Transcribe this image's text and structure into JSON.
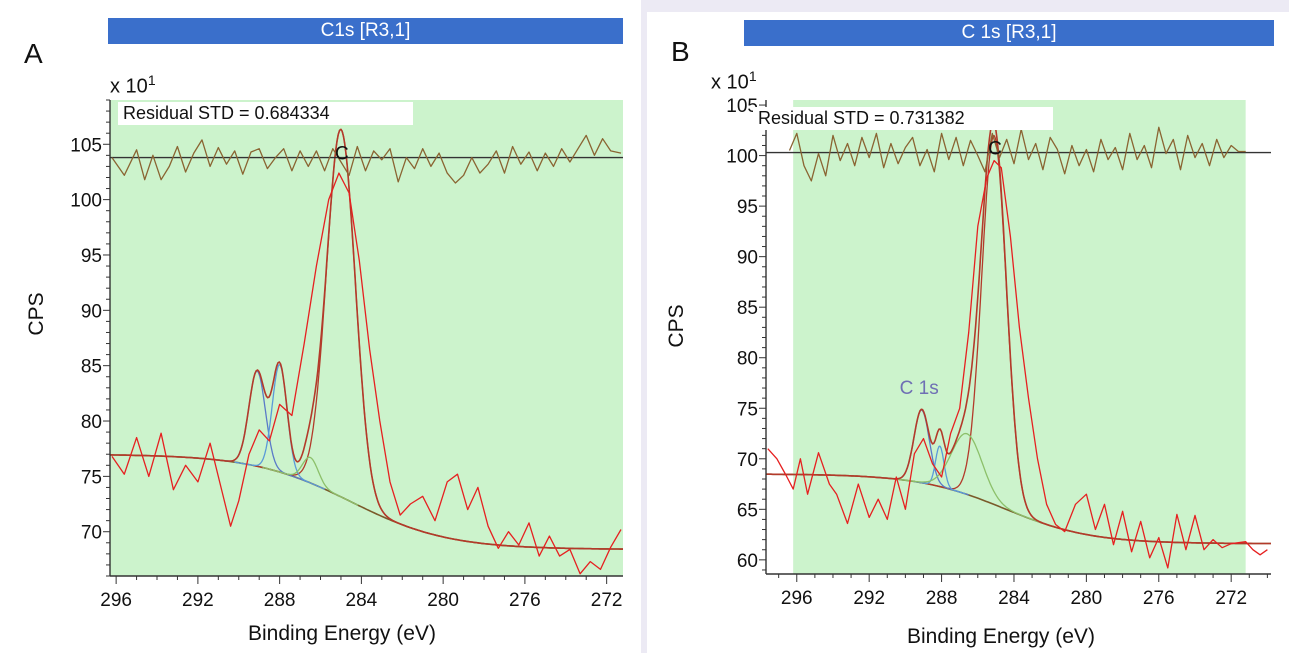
{
  "panels": {
    "a": {
      "letter": "A",
      "title": "C1s [R3,1]",
      "multiplier_base": "x 10",
      "multiplier_exp": "1",
      "residual": "Residual STD = 0.684334",
      "ylabel": "CPS",
      "xlabel": "Binding Energy (eV)"
    },
    "b": {
      "letter": "B",
      "title": "C 1s [R3,1]",
      "multiplier_base": "x 10",
      "multiplier_exp": "1",
      "residual": "Residual STD = 0.731382",
      "ylabel": "CPS",
      "xlabel": "Binding Energy (eV)",
      "peak_label": "C 1s"
    }
  },
  "colors": {
    "fill": "#ccf3cc",
    "data": "#e62020",
    "envelope": "#b33a2a",
    "background": "#7a5a2a",
    "residual": "#8a6432",
    "component1": "#5a7ac8",
    "component2": "#5a9ad8",
    "component3": "#8cc06a",
    "title_bar": "#3a6fcb"
  },
  "chart_data": [
    {
      "type": "line",
      "panel": "A",
      "title": "C1s [R3,1]",
      "xlabel": "Binding Energy (eV)",
      "ylabel": "CPS",
      "xlim": [
        296.3,
        271.2
      ],
      "ylim": [
        66,
        109
      ],
      "xticks": [
        296,
        292,
        288,
        284,
        280,
        276,
        272
      ],
      "yticks": [
        70,
        75,
        80,
        85,
        90,
        95,
        100,
        105
      ],
      "residual_baseline": 103.8,
      "residual_std": 0.684334,
      "background": {
        "start": 77,
        "end": 68.4,
        "center": 284.5
      },
      "components": [
        {
          "name": "",
          "center": 285.0,
          "height": 33.2,
          "fwhm": 1.65
        },
        {
          "name": "",
          "center": 289.1,
          "height": 8.6,
          "fwhm": 0.95
        },
        {
          "name": "",
          "center": 288.0,
          "height": 9.7,
          "fwhm": 0.85
        },
        {
          "name": "",
          "center": 286.5,
          "height": 2.3,
          "fwhm": 0.9
        }
      ],
      "raw_data": [
        [
          296.2,
          76.8
        ],
        [
          295.6,
          75.2
        ],
        [
          295.0,
          78.5
        ],
        [
          294.4,
          75.0
        ],
        [
          293.8,
          78.9
        ],
        [
          293.2,
          73.8
        ],
        [
          292.6,
          76.0
        ],
        [
          292.0,
          74.5
        ],
        [
          291.4,
          78.0
        ],
        [
          290.8,
          73.5
        ],
        [
          290.4,
          70.5
        ],
        [
          290.0,
          72.8
        ],
        [
          289.5,
          77.0
        ],
        [
          289.0,
          79.2
        ],
        [
          288.5,
          78.2
        ],
        [
          288.0,
          81.5
        ],
        [
          287.4,
          80.5
        ],
        [
          286.8,
          87.0
        ],
        [
          286.2,
          94.0
        ],
        [
          285.6,
          100.0
        ],
        [
          285.1,
          102.4
        ],
        [
          284.6,
          100.6
        ],
        [
          284.1,
          94.5
        ],
        [
          283.6,
          86.5
        ],
        [
          283.1,
          80.0
        ],
        [
          282.6,
          74.5
        ],
        [
          282.1,
          71.5
        ],
        [
          281.6,
          72.5
        ],
        [
          281.0,
          73.2
        ],
        [
          280.4,
          71.0
        ],
        [
          279.8,
          74.5
        ],
        [
          279.3,
          75.2
        ],
        [
          278.8,
          72.0
        ],
        [
          278.3,
          74.0
        ],
        [
          277.8,
          70.5
        ],
        [
          277.3,
          68.5
        ],
        [
          276.8,
          70.0
        ],
        [
          276.3,
          68.8
        ],
        [
          275.8,
          70.8
        ],
        [
          275.3,
          67.8
        ],
        [
          274.8,
          69.6
        ],
        [
          274.3,
          67.8
        ],
        [
          273.8,
          68.4
        ],
        [
          273.3,
          66.2
        ],
        [
          272.8,
          67.3
        ],
        [
          272.3,
          66.6
        ],
        [
          271.8,
          68.6
        ],
        [
          271.3,
          70.2
        ]
      ],
      "residual_curve": [
        [
          296.2,
          103.8
        ],
        [
          295.6,
          102.2
        ],
        [
          295.0,
          104.5
        ],
        [
          294.6,
          101.8
        ],
        [
          294.2,
          104.0
        ],
        [
          293.8,
          101.8
        ],
        [
          293.4,
          103.0
        ],
        [
          293.0,
          104.8
        ],
        [
          292.6,
          102.5
        ],
        [
          292.2,
          104.2
        ],
        [
          291.8,
          105.4
        ],
        [
          291.4,
          103.0
        ],
        [
          291.0,
          104.7
        ],
        [
          290.6,
          103.2
        ],
        [
          290.2,
          104.4
        ],
        [
          289.8,
          102.3
        ],
        [
          289.4,
          104.3
        ],
        [
          289.0,
          104.6
        ],
        [
          288.6,
          102.8
        ],
        [
          288.2,
          103.8
        ],
        [
          287.8,
          104.6
        ],
        [
          287.4,
          102.6
        ],
        [
          287.0,
          104.4
        ],
        [
          286.6,
          103.0
        ],
        [
          286.2,
          104.4
        ],
        [
          285.8,
          102.6
        ],
        [
          285.4,
          104.6
        ],
        [
          285.0,
          103.4
        ],
        [
          284.6,
          102.2
        ],
        [
          284.2,
          104.8
        ],
        [
          283.8,
          102.6
        ],
        [
          283.4,
          104.4
        ],
        [
          283.0,
          103.6
        ],
        [
          282.6,
          104.6
        ],
        [
          282.2,
          101.6
        ],
        [
          281.8,
          103.8
        ],
        [
          281.4,
          102.8
        ],
        [
          281.0,
          104.6
        ],
        [
          280.6,
          103.0
        ],
        [
          280.2,
          104.2
        ],
        [
          279.8,
          102.4
        ],
        [
          279.4,
          101.5
        ],
        [
          279.0,
          102.2
        ],
        [
          278.6,
          103.8
        ],
        [
          278.2,
          102.4
        ],
        [
          277.8,
          103.2
        ],
        [
          277.4,
          104.4
        ],
        [
          277.0,
          102.4
        ],
        [
          276.6,
          104.8
        ],
        [
          276.2,
          103.2
        ],
        [
          275.8,
          104.3
        ],
        [
          275.4,
          102.6
        ],
        [
          275.0,
          104.2
        ],
        [
          274.6,
          103.0
        ],
        [
          274.2,
          104.6
        ],
        [
          273.8,
          103.4
        ],
        [
          273.4,
          104.6
        ],
        [
          273.0,
          105.8
        ],
        [
          272.6,
          104.0
        ],
        [
          272.2,
          105.5
        ],
        [
          271.8,
          104.4
        ],
        [
          271.3,
          104.2
        ]
      ]
    },
    {
      "type": "line",
      "panel": "B",
      "title": "C 1s [R3,1]",
      "xlabel": "Binding Energy (eV)",
      "ylabel": "CPS",
      "xlim": [
        297.7,
        269.8
      ],
      "ylim": [
        58.6,
        105.5
      ],
      "xticks": [
        296,
        292,
        288,
        284,
        280,
        276,
        272
      ],
      "yticks": [
        60,
        65,
        70,
        75,
        80,
        85,
        90,
        95,
        100,
        105
      ],
      "shaded_range": [
        296.2,
        271.2
      ],
      "residual_baseline": 100.3,
      "residual_std": 0.731382,
      "background": {
        "start": 68.5,
        "end": 61.6,
        "center": 284.5
      },
      "components": [
        {
          "name": "C 1s",
          "center": 285.1,
          "height": 36.5,
          "fwhm": 1.6
        },
        {
          "name": "",
          "center": 289.1,
          "height": 7.2,
          "fwhm": 1.0
        },
        {
          "name": "",
          "center": 288.1,
          "height": 4.0,
          "fwhm": 0.55
        },
        {
          "name": "",
          "center": 286.6,
          "height": 6.0,
          "fwhm": 2.0
        }
      ],
      "raw_data": [
        [
          297.6,
          71.0
        ],
        [
          297.1,
          70.0
        ],
        [
          296.6,
          68.4
        ],
        [
          296.2,
          67.0
        ],
        [
          295.8,
          70.0
        ],
        [
          295.4,
          66.5
        ],
        [
          294.8,
          70.6
        ],
        [
          294.2,
          67.5
        ],
        [
          293.8,
          66.5
        ],
        [
          293.2,
          63.6
        ],
        [
          292.6,
          67.5
        ],
        [
          292.0,
          64.2
        ],
        [
          291.5,
          66.0
        ],
        [
          291.0,
          64.0
        ],
        [
          290.5,
          68.2
        ],
        [
          290.0,
          65.0
        ],
        [
          289.5,
          70.5
        ],
        [
          289.0,
          72.0
        ],
        [
          288.5,
          69.5
        ],
        [
          288.0,
          68.2
        ],
        [
          287.5,
          72.5
        ],
        [
          287.0,
          75.0
        ],
        [
          286.5,
          82.5
        ],
        [
          286.0,
          93.0
        ],
        [
          285.5,
          97.8
        ],
        [
          285.1,
          99.5
        ],
        [
          284.7,
          98.8
        ],
        [
          284.2,
          92.0
        ],
        [
          283.7,
          83.0
        ],
        [
          283.2,
          76.0
        ],
        [
          282.7,
          70.0
        ],
        [
          282.2,
          65.5
        ],
        [
          281.7,
          63.5
        ],
        [
          281.2,
          62.8
        ],
        [
          280.6,
          65.5
        ],
        [
          280.0,
          66.5
        ],
        [
          279.5,
          63.0
        ],
        [
          279.0,
          65.5
        ],
        [
          278.5,
          61.5
        ],
        [
          278.0,
          64.8
        ],
        [
          277.5,
          60.8
        ],
        [
          277.0,
          63.8
        ],
        [
          276.5,
          60.2
        ],
        [
          276.0,
          62.2
        ],
        [
          275.5,
          59.2
        ],
        [
          275.0,
          64.5
        ],
        [
          274.5,
          61.0
        ],
        [
          274.0,
          64.4
        ],
        [
          273.5,
          61.0
        ],
        [
          273.0,
          62.0
        ],
        [
          272.5,
          61.2
        ],
        [
          272.0,
          61.6
        ],
        [
          271.2,
          61.8
        ],
        [
          270.8,
          61.0
        ],
        [
          270.4,
          60.5
        ],
        [
          270.0,
          61.0
        ]
      ],
      "residual_curve": [
        [
          296.4,
          100.5
        ],
        [
          296.0,
          102.2
        ],
        [
          295.6,
          99.0
        ],
        [
          295.2,
          97.5
        ],
        [
          294.8,
          100.2
        ],
        [
          294.4,
          98.0
        ],
        [
          294.0,
          102.0
        ],
        [
          293.6,
          99.5
        ],
        [
          293.2,
          101.2
        ],
        [
          292.8,
          99.0
        ],
        [
          292.4,
          101.8
        ],
        [
          292.0,
          99.8
        ],
        [
          291.6,
          102.2
        ],
        [
          291.2,
          98.8
        ],
        [
          290.8,
          101.2
        ],
        [
          290.4,
          99.2
        ],
        [
          290.0,
          100.8
        ],
        [
          289.6,
          101.8
        ],
        [
          289.2,
          99.0
        ],
        [
          288.8,
          100.6
        ],
        [
          288.4,
          98.4
        ],
        [
          288.0,
          102.2
        ],
        [
          287.6,
          99.6
        ],
        [
          287.2,
          101.8
        ],
        [
          286.8,
          99.0
        ],
        [
          286.4,
          101.5
        ],
        [
          286.0,
          100.0
        ],
        [
          285.6,
          98.4
        ],
        [
          285.2,
          102.2
        ],
        [
          284.8,
          99.8
        ],
        [
          284.4,
          101.6
        ],
        [
          284.0,
          99.2
        ],
        [
          283.6,
          102.6
        ],
        [
          283.2,
          99.6
        ],
        [
          282.8,
          101.2
        ],
        [
          282.4,
          98.6
        ],
        [
          282.0,
          101.8
        ],
        [
          281.6,
          100.6
        ],
        [
          281.2,
          98.2
        ],
        [
          280.8,
          101.0
        ],
        [
          280.4,
          99.0
        ],
        [
          280.0,
          100.6
        ],
        [
          279.6,
          98.4
        ],
        [
          279.2,
          101.6
        ],
        [
          278.8,
          99.6
        ],
        [
          278.4,
          100.8
        ],
        [
          278.0,
          98.6
        ],
        [
          277.6,
          102.2
        ],
        [
          277.2,
          99.6
        ],
        [
          276.8,
          101.0
        ],
        [
          276.4,
          98.8
        ],
        [
          276.0,
          102.8
        ],
        [
          275.6,
          100.2
        ],
        [
          275.2,
          101.6
        ],
        [
          274.8,
          98.6
        ],
        [
          274.4,
          102.0
        ],
        [
          274.0,
          99.8
        ],
        [
          273.6,
          101.2
        ],
        [
          273.2,
          99.0
        ],
        [
          272.8,
          101.6
        ],
        [
          272.4,
          99.8
        ],
        [
          272.0,
          101.0
        ],
        [
          271.6,
          100.4
        ],
        [
          271.2,
          100.4
        ]
      ]
    }
  ]
}
